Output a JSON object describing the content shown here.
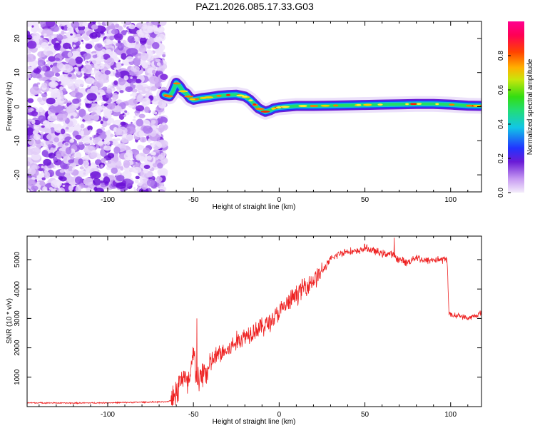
{
  "title": "PAZ1.2026.085.17.33.G03",
  "colors": {
    "snr_line": "#ee2222",
    "noise": "#8a2be2",
    "grid": "#000000"
  },
  "chart_data": [
    {
      "type": "heatmap",
      "name": "spectrogram",
      "xlabel": "Height of straight line (km)",
      "ylabel": "Frequency (Hz)",
      "xlim": [
        -147,
        118
      ],
      "ylim": [
        -25,
        25
      ],
      "xticks": [
        -100,
        -50,
        0,
        50,
        100
      ],
      "yticks": [
        20,
        10,
        0,
        -10,
        -20
      ],
      "noise_region_x": [
        -147,
        -67
      ],
      "ridge": {
        "x": [
          -67,
          -64,
          -62,
          -60,
          -58,
          -56,
          -54,
          -52,
          -50,
          -48,
          -45,
          -40,
          -35,
          -30,
          -25,
          -20,
          -17,
          -15,
          -12,
          -10,
          -8,
          -5,
          -3,
          0,
          5,
          10,
          20,
          30,
          40,
          50,
          60,
          70,
          80,
          90,
          100,
          110,
          118
        ],
        "y": [
          3.5,
          3,
          4.5,
          7,
          6,
          4.5,
          3.8,
          2.5,
          2,
          2.2,
          2.5,
          2.8,
          3.2,
          3.4,
          3.5,
          3,
          2,
          1,
          -0.5,
          -1,
          -1.5,
          -1,
          -0.5,
          -0.2,
          0,
          0.2,
          0.2,
          0.3,
          0.4,
          0.5,
          0.6,
          0.7,
          0.8,
          0.8,
          0.6,
          0.3,
          0.2
        ]
      },
      "colorbar": {
        "label": "Normalized spectral amplitude",
        "range": [
          0,
          1
        ],
        "ticks": [
          "0.0",
          "0.2",
          "0.4",
          "0.6",
          "0.8"
        ]
      }
    },
    {
      "type": "line",
      "name": "snr",
      "xlabel": "Height of straight line (km)",
      "ylabel": "SNR (10 * v/v)",
      "xlim": [
        -147,
        118
      ],
      "ylim": [
        0,
        5800
      ],
      "xticks": [
        -100,
        -50,
        0,
        50,
        100
      ],
      "yticks": [
        1000,
        2000,
        3000,
        4000,
        5000
      ],
      "series": [
        {
          "name": "SNR",
          "x": [
            -147,
            -120,
            -100,
            -80,
            -65,
            -62,
            -60,
            -58,
            -56,
            -54,
            -52,
            -50,
            -48,
            -46,
            -44,
            -42,
            -40,
            -35,
            -30,
            -25,
            -20,
            -15,
            -10,
            -5,
            0,
            5,
            10,
            15,
            20,
            25,
            30,
            35,
            40,
            45,
            50,
            55,
            60,
            65,
            70,
            75,
            80,
            85,
            90,
            95,
            98,
            99,
            100,
            105,
            110,
            115,
            118
          ],
          "y": [
            130,
            120,
            130,
            150,
            160,
            250,
            500,
            800,
            1100,
            700,
            900,
            1800,
            1000,
            800,
            1300,
            1100,
            1500,
            1800,
            1900,
            2200,
            2400,
            2600,
            2700,
            2900,
            3200,
            3500,
            3800,
            4100,
            4300,
            4600,
            5000,
            5200,
            5300,
            5250,
            5400,
            5300,
            5200,
            5200,
            5000,
            4900,
            5100,
            4950,
            5000,
            5000,
            5000,
            3200,
            3100,
            3100,
            3000,
            3100,
            3200
          ],
          "peaks": [
            {
              "x": -48,
              "y": 3000
            },
            {
              "x": 67,
              "y": 5750
            }
          ]
        }
      ]
    }
  ]
}
